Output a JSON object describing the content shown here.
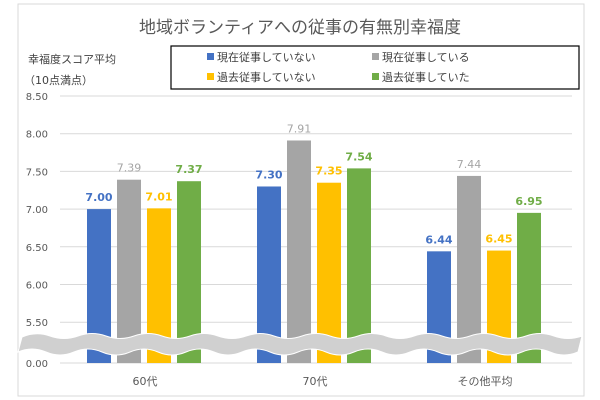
{
  "chart_data": {
    "type": "bar",
    "title": "地域ボランティアへの従事の有無別幸福度",
    "ylabel": "幸福度スコア平均",
    "ylabel_sub": "（10点満点）",
    "xlabel": "",
    "categories": [
      "60代",
      "70代",
      "その他平均"
    ],
    "yticks": [
      "8.50",
      "8.00",
      "7.50",
      "7.00",
      "6.50",
      "6.00",
      "5.50",
      "0.00"
    ],
    "ylim": [
      0,
      8.5
    ],
    "axis_break": [
      0,
      5.5
    ],
    "grid": true,
    "legend_position": "top-right",
    "series": [
      {
        "name": "現在従事していない",
        "color": "#4472C4",
        "values": [
          7.0,
          7.3,
          6.44
        ],
        "labels": [
          "7.00",
          "7.30",
          "6.44"
        ]
      },
      {
        "name": "現在従事している",
        "color": "#A5A5A5",
        "values": [
          7.39,
          7.91,
          7.44
        ],
        "labels": [
          "7.39",
          "7.91",
          "7.44"
        ]
      },
      {
        "name": "過去従事していない",
        "color": "#FFC000",
        "values": [
          7.01,
          7.35,
          6.45
        ],
        "labels": [
          "7.01",
          "7.35",
          "6.45"
        ]
      },
      {
        "name": "過去従事していた",
        "color": "#70AD47",
        "values": [
          7.37,
          7.54,
          6.95
        ],
        "labels": [
          "7.37",
          "7.54",
          "6.95"
        ]
      }
    ]
  }
}
